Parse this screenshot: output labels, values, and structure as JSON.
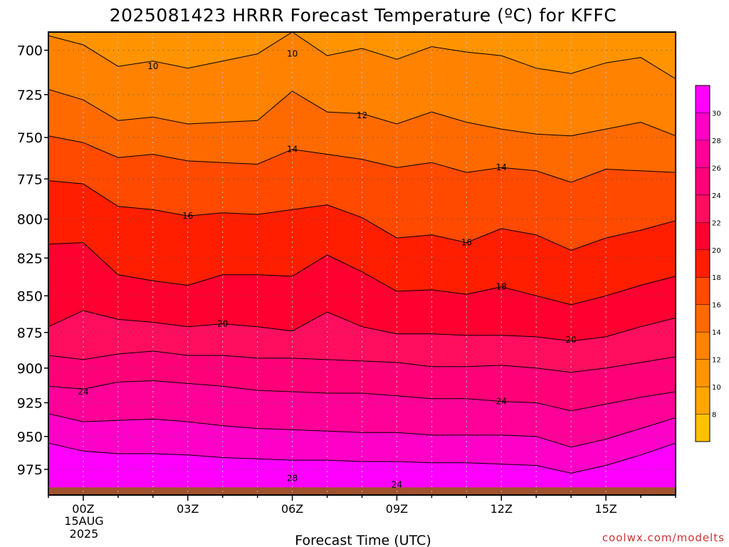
{
  "chart_data": {
    "type": "contour",
    "title": "2025081423 HRRR Forecast Temperature (ºC) for KFFC",
    "xlabel": "Forecast Time (UTC)",
    "ylabel": "",
    "credit": "coolwx.com/modelts",
    "x_ticks": [
      "00Z",
      "03Z",
      "06Z",
      "09Z",
      "12Z",
      "15Z"
    ],
    "x_tick_hours": [
      0,
      3,
      6,
      9,
      12,
      15
    ],
    "x_date_line1": "15AUG",
    "x_date_line2": "2025",
    "xlim_hours": [
      -1,
      17
    ],
    "y_ticks": [
      700,
      725,
      750,
      775,
      800,
      825,
      850,
      875,
      900,
      925,
      950,
      975
    ],
    "ylim_hpa": [
      690,
      995
    ],
    "y_scale": "log-pressure (reversed)",
    "grid": "dotted",
    "colorbar": {
      "levels": [
        6,
        8,
        10,
        12,
        14,
        16,
        18,
        20,
        22,
        24,
        26,
        28,
        30,
        32
      ],
      "labels": [
        "8",
        "10",
        "12",
        "14",
        "16",
        "18",
        "20",
        "22",
        "24",
        "26",
        "28",
        "30"
      ],
      "colors": [
        "#ffc000",
        "#ffa500",
        "#ff9400",
        "#ff8200",
        "#ff6a00",
        "#ff4a00",
        "#ff1e00",
        "#ff0030",
        "#ff0e60",
        "#ff0078",
        "#ff0098",
        "#ff00c8",
        "#ff00ff"
      ]
    },
    "ground_color": "#a0522d",
    "ground_surface_hpa": 989,
    "hours": [
      -1,
      0,
      1,
      2,
      3,
      4,
      5,
      6,
      7,
      8,
      9,
      10,
      11,
      12,
      13,
      14,
      15,
      16,
      17
    ],
    "isotherms": [
      {
        "value": 10,
        "pressure": [
          692,
          697,
          709,
          706,
          710,
          706,
          702,
          690,
          703,
          699,
          705,
          698,
          701,
          703,
          710,
          713,
          707,
          704,
          716
        ]
      },
      {
        "value": 12,
        "pressure": [
          722,
          728,
          740,
          738,
          742,
          741,
          740,
          723,
          735,
          736,
          742,
          735,
          741,
          745,
          748,
          749,
          745,
          741,
          749
        ]
      },
      {
        "value": 14,
        "pressure": [
          749,
          753,
          762,
          760,
          764,
          765,
          766,
          757,
          760,
          763,
          768,
          765,
          771,
          768,
          770,
          777,
          769,
          770,
          771
        ]
      },
      {
        "value": 16,
        "pressure": [
          776,
          778,
          792,
          794,
          798,
          796,
          797,
          794,
          791,
          799,
          812,
          810,
          815,
          806,
          810,
          820,
          812,
          807,
          801
        ]
      },
      {
        "value": 18,
        "pressure": [
          816,
          815,
          836,
          840,
          843,
          836,
          836,
          837,
          823,
          834,
          847,
          846,
          849,
          844,
          850,
          856,
          850,
          843,
          837
        ]
      },
      {
        "value": 20,
        "pressure": [
          871,
          860,
          866,
          868,
          871,
          869,
          871,
          874,
          861,
          871,
          876,
          876,
          877,
          877,
          878,
          881,
          878,
          871,
          865
        ]
      },
      {
        "value": 22,
        "pressure": [
          891,
          894,
          890,
          888,
          891,
          891,
          893,
          893,
          894,
          895,
          896,
          899,
          899,
          898,
          900,
          903,
          900,
          896,
          892
        ]
      },
      {
        "value": 24,
        "pressure": [
          913,
          915,
          910,
          909,
          911,
          913,
          916,
          917,
          918,
          918,
          920,
          922,
          922,
          924,
          925,
          931,
          926,
          921,
          917
        ]
      },
      {
        "value": 26,
        "pressure": [
          933,
          939,
          938,
          937,
          939,
          942,
          944,
          945,
          946,
          947,
          947,
          949,
          949,
          949,
          950,
          958,
          952,
          944,
          936
        ]
      },
      {
        "value": 28,
        "pressure": [
          955,
          961,
          963,
          963,
          964,
          966,
          967,
          968,
          968,
          969,
          969,
          970,
          970,
          971,
          972,
          978,
          972,
          964,
          955
        ]
      }
    ],
    "isotherm_labels": [
      {
        "text": "10",
        "hour": 2.0,
        "pressure": 709
      },
      {
        "text": "10",
        "hour": 6.0,
        "pressure": 702
      },
      {
        "text": "12",
        "hour": 8.0,
        "pressure": 737
      },
      {
        "text": "14",
        "hour": 6.0,
        "pressure": 757
      },
      {
        "text": "14",
        "hour": 12.0,
        "pressure": 768
      },
      {
        "text": "16",
        "hour": 3.0,
        "pressure": 798
      },
      {
        "text": "16",
        "hour": 11.0,
        "pressure": 815
      },
      {
        "text": "18",
        "hour": 12.0,
        "pressure": 844
      },
      {
        "text": "20",
        "hour": 4.0,
        "pressure": 869
      },
      {
        "text": "20",
        "hour": 14.0,
        "pressure": 880
      },
      {
        "text": "24",
        "hour": 0.0,
        "pressure": 917
      },
      {
        "text": "24",
        "hour": 12.0,
        "pressure": 924
      },
      {
        "text": "28",
        "hour": 6.0,
        "pressure": 982
      },
      {
        "text": "24",
        "hour": 9.0,
        "pressure": 987
      }
    ]
  }
}
